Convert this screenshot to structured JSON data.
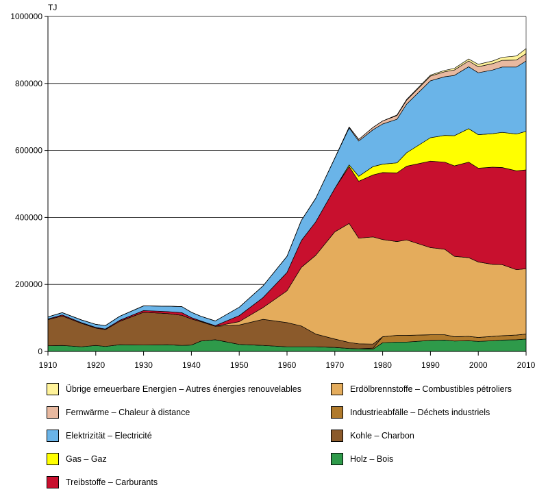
{
  "chart_data": {
    "type": "area",
    "stacked": true,
    "unit_label": "TJ",
    "xlim": [
      1910,
      2010
    ],
    "ylim": [
      0,
      1000000
    ],
    "x_ticks": [
      1910,
      1920,
      1930,
      1940,
      1950,
      1960,
      1970,
      1980,
      1990,
      2000,
      2010
    ],
    "y_ticks": [
      0,
      200000,
      400000,
      600000,
      800000,
      1000000
    ],
    "y_tick_labels": [
      "0",
      "200000",
      "400000",
      "600000",
      "800000",
      "1000000"
    ],
    "x": [
      1910,
      1913,
      1917,
      1920,
      1922,
      1925,
      1930,
      1935,
      1938,
      1940,
      1942,
      1945,
      1950,
      1955,
      1960,
      1963,
      1966,
      1970,
      1973,
      1975,
      1978,
      1980,
      1983,
      1985,
      1990,
      1993,
      1995,
      1998,
      2000,
      2003,
      2005,
      2008,
      2010
    ],
    "series": [
      {
        "name": "Holz – Bois",
        "color": "#2e9a4a",
        "values": [
          17000,
          18000,
          14000,
          18000,
          15000,
          20000,
          19000,
          20000,
          18000,
          19000,
          31000,
          35000,
          21000,
          18000,
          14000,
          14000,
          14000,
          12000,
          9000,
          8000,
          7000,
          26000,
          28000,
          28000,
          33000,
          34000,
          31000,
          32000,
          30000,
          32000,
          34000,
          35000,
          37000
        ]
      },
      {
        "name": "Industrieabfälle – Déchets industriels",
        "color": "#b07a2c",
        "values": [
          0,
          0,
          0,
          0,
          0,
          0,
          0,
          0,
          0,
          0,
          0,
          0,
          0,
          0,
          0,
          0,
          0,
          0,
          0,
          0,
          3000,
          18000,
          20000,
          20000,
          17000,
          16000,
          13000,
          13000,
          12000,
          13000,
          13000,
          14000,
          15000
        ]
      },
      {
        "name": "Kohle – Charbon",
        "color": "#8b5a2b",
        "values": [
          78000,
          88000,
          70000,
          52000,
          50000,
          70000,
          98000,
          93000,
          90000,
          78000,
          58000,
          40000,
          58000,
          78000,
          72000,
          62000,
          38000,
          25000,
          18000,
          15000,
          12000,
          0,
          0,
          0,
          0,
          0,
          0,
          0,
          0,
          0,
          0,
          0,
          0
        ]
      },
      {
        "name": "Erdölbrennstoffe – Combustibles pétroliers",
        "color": "#e4ac5c",
        "values": [
          0,
          0,
          0,
          0,
          0,
          0,
          0,
          0,
          0,
          0,
          0,
          0,
          10000,
          35000,
          95000,
          175000,
          235000,
          320000,
          355000,
          315000,
          320000,
          290000,
          280000,
          285000,
          260000,
          255000,
          240000,
          235000,
          225000,
          215000,
          212000,
          195000,
          195000
        ]
      },
      {
        "name": "Treibstoffe – Carburants",
        "color": "#c8102e",
        "values": [
          2000,
          3000,
          2000,
          2000,
          2000,
          3000,
          5000,
          6000,
          8000,
          4000,
          2000,
          2000,
          18000,
          30000,
          55000,
          80000,
          100000,
          130000,
          170000,
          170000,
          185000,
          200000,
          205000,
          220000,
          258000,
          260000,
          270000,
          285000,
          280000,
          290000,
          290000,
          295000,
          295000
        ]
      },
      {
        "name": "Gas – Gaz",
        "color": "#ffff00",
        "values": [
          0,
          0,
          0,
          0,
          0,
          0,
          0,
          0,
          0,
          0,
          0,
          0,
          0,
          0,
          0,
          0,
          0,
          0,
          5000,
          15000,
          25000,
          25000,
          30000,
          40000,
          70000,
          80000,
          90000,
          100000,
          100000,
          100000,
          105000,
          110000,
          115000
        ]
      },
      {
        "name": "Elektrizität – Electricité",
        "color": "#6ab4e8",
        "values": [
          6000,
          7000,
          8000,
          9000,
          10000,
          12000,
          14000,
          16000,
          18000,
          16000,
          14000,
          14000,
          25000,
          35000,
          48000,
          60000,
          70000,
          90000,
          110000,
          105000,
          110000,
          120000,
          130000,
          145000,
          170000,
          175000,
          180000,
          185000,
          185000,
          190000,
          195000,
          200000,
          210000
        ]
      },
      {
        "name": "Fernwärme – Chaleur à distance",
        "color": "#e8b9a0",
        "values": [
          0,
          0,
          0,
          0,
          0,
          0,
          0,
          0,
          0,
          0,
          0,
          0,
          0,
          0,
          0,
          0,
          0,
          0,
          3000,
          5000,
          7000,
          9000,
          11000,
          12000,
          14000,
          15000,
          16000,
          17000,
          18000,
          19000,
          20000,
          21000,
          22000
        ]
      },
      {
        "name": "Übrige erneuerbare Energien – Autres énergies renouvelables",
        "color": "#fff39a",
        "values": [
          0,
          0,
          0,
          0,
          0,
          0,
          0,
          0,
          0,
          0,
          0,
          0,
          0,
          0,
          0,
          0,
          0,
          0,
          0,
          0,
          0,
          0,
          2000,
          2000,
          3000,
          4000,
          5000,
          6000,
          7000,
          8000,
          9000,
          12000,
          15000
        ]
      }
    ]
  },
  "legend": {
    "left_column": [
      {
        "label": "Übrige erneuerbare Energien – Autres énergies renouvelables",
        "color": "#fff39a"
      },
      {
        "label": "Fernwärme – Chaleur à distance",
        "color": "#e8b9a0"
      },
      {
        "label": "Elektrizität – Electricité",
        "color": "#6ab4e8"
      },
      {
        "label": "Gas – Gaz",
        "color": "#ffff00"
      },
      {
        "label": "Treibstoffe – Carburants",
        "color": "#c8102e"
      }
    ],
    "right_column": [
      {
        "label": "Erdölbrennstoffe – Combustibles pétroliers",
        "color": "#e4ac5c"
      },
      {
        "label": "Industrieabfälle – Déchets industriels",
        "color": "#b07a2c"
      },
      {
        "label": "Kohle – Charbon",
        "color": "#8b5a2b"
      },
      {
        "label": "Holz – Bois",
        "color": "#2e9a4a"
      }
    ]
  }
}
